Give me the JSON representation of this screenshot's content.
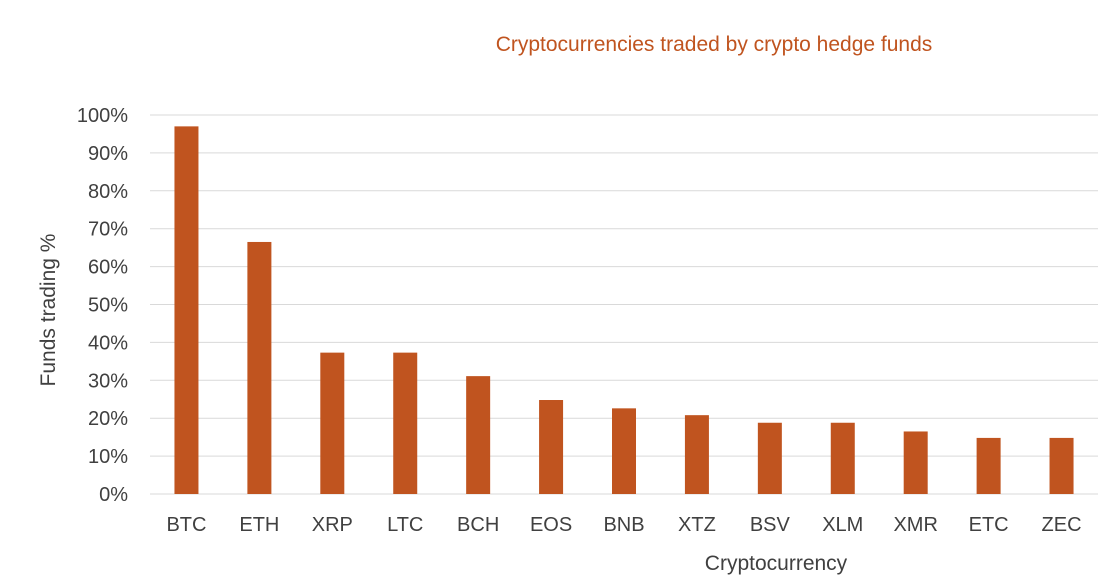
{
  "chart_data": {
    "type": "bar",
    "title": "Cryptocurrencies traded by crypto  hedge funds",
    "xlabel": "Cryptocurrency",
    "ylabel": "Funds trading %",
    "categories": [
      "BTC",
      "ETH",
      "XRP",
      "LTC",
      "BCH",
      "EOS",
      "BNB",
      "XTZ",
      "BSV",
      "XLM",
      "XMR",
      "ETC",
      "ZEC"
    ],
    "values": [
      97,
      66.5,
      37.3,
      37.3,
      31.1,
      24.8,
      22.6,
      20.8,
      18.8,
      18.8,
      16.5,
      14.8,
      14.8
    ],
    "yticks": [
      "0%",
      "10%",
      "20%",
      "30%",
      "40%",
      "50%",
      "60%",
      "70%",
      "80%",
      "90%",
      "100%"
    ],
    "ylim": [
      0,
      100
    ],
    "grid": true,
    "legend": "none",
    "colors": {
      "bar": "#c0541f",
      "title": "#c0541f",
      "grid": "#d9d9d9",
      "text": "#404040"
    }
  }
}
